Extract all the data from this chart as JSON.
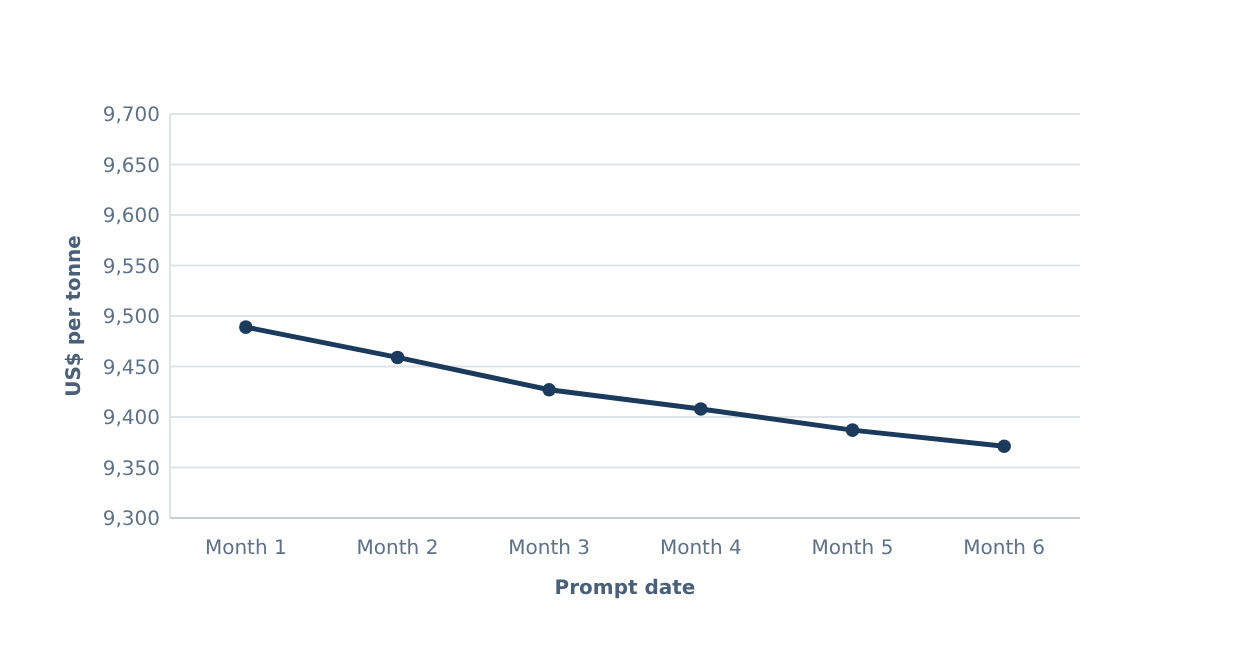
{
  "chart_data": {
    "type": "line",
    "xlabel": "Prompt date",
    "ylabel": "US$ per tonne",
    "categories": [
      "Month 1",
      "Month 2",
      "Month 3",
      "Month 4",
      "Month 5",
      "Month 6"
    ],
    "series": [
      {
        "color": "#1b3a5c",
        "values": [
          9489,
          9459,
          9427,
          9408,
          9387,
          9371
        ]
      }
    ],
    "ylim": [
      9300,
      9700
    ],
    "yticks": [
      {
        "value": 9300,
        "label": "9,300"
      },
      {
        "value": 9350,
        "label": "9,350"
      },
      {
        "value": 9400,
        "label": "9,400"
      },
      {
        "value": 9450,
        "label": "9,450"
      },
      {
        "value": 9500,
        "label": "9,500"
      },
      {
        "value": 9550,
        "label": "9,550"
      },
      {
        "value": 9600,
        "label": "9,600"
      },
      {
        "value": 9650,
        "label": "9,650"
      },
      {
        "value": 9700,
        "label": "9,700"
      }
    ],
    "grid": "y",
    "marker": "circle"
  }
}
